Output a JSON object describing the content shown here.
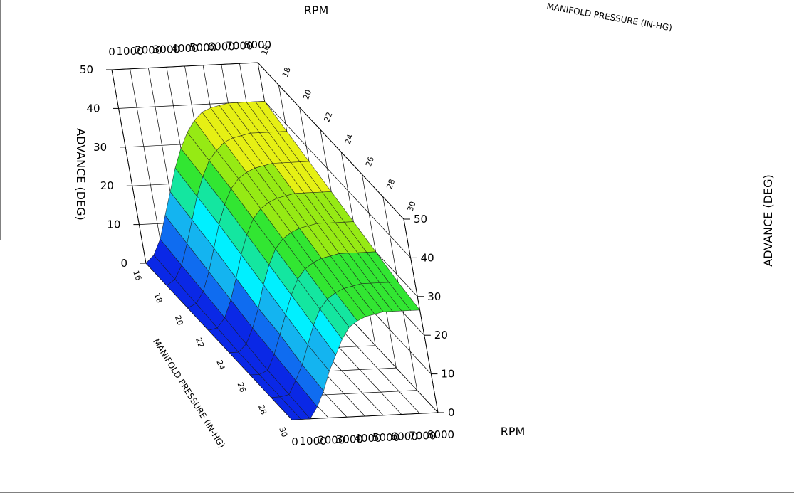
{
  "chart_data": {
    "type": "surface3d",
    "title": "",
    "x_axis": {
      "label": "RPM",
      "range": [
        0,
        8000
      ],
      "ticks": [
        "0",
        "1000",
        "2000",
        "3000",
        "4000",
        "5000",
        "6000",
        "7000",
        "8000"
      ]
    },
    "y_axis": {
      "label": "MANIFOLD PRESSURE (IN-HG)",
      "range": [
        16,
        30
      ],
      "ticks": [
        "16",
        "18",
        "20",
        "22",
        "24",
        "26",
        "28",
        "30"
      ]
    },
    "z_axis": {
      "label": "ADVANCE (DEG)",
      "range": [
        0,
        50
      ],
      "ticks": [
        "0",
        "10",
        "20",
        "30",
        "40",
        "50"
      ]
    },
    "rpm": [
      0,
      500,
      1000,
      1500,
      2000,
      2500,
      3000,
      3500,
      4000,
      4500,
      5000,
      5500,
      6000,
      6500,
      7000,
      7500,
      8000
    ],
    "manifold_pressure": [
      16,
      18,
      20,
      22,
      24,
      26,
      28,
      30
    ],
    "advance": [
      [
        0,
        2,
        6,
        12,
        18,
        24,
        29,
        33,
        36,
        38,
        39,
        39.5,
        40,
        40,
        40,
        40,
        40
      ],
      [
        0,
        1.5,
        5,
        10.5,
        16.5,
        22.5,
        27.5,
        31.5,
        34,
        36,
        37,
        37.5,
        38,
        38,
        38,
        38,
        38
      ],
      [
        0,
        1,
        4,
        9,
        15,
        21,
        26,
        30,
        32.5,
        34,
        35,
        35.5,
        36,
        36,
        36,
        36,
        36
      ],
      [
        0,
        0.5,
        3,
        7.5,
        13,
        19,
        24,
        28,
        30.5,
        32,
        33,
        33.5,
        34,
        34,
        34,
        34,
        34
      ],
      [
        0,
        0,
        2,
        6,
        11,
        17,
        22,
        26,
        28.5,
        30,
        31,
        31.5,
        32,
        32,
        32,
        32,
        32
      ],
      [
        0,
        0,
        1,
        5,
        10,
        15,
        20,
        24,
        26.5,
        28,
        29,
        29.5,
        30,
        30,
        30,
        30,
        30
      ],
      [
        0,
        0,
        0.5,
        4,
        8,
        13,
        18,
        22,
        24.5,
        26,
        27,
        27.5,
        28,
        28,
        28,
        28,
        28
      ],
      [
        0,
        0,
        0,
        3,
        7,
        12,
        16,
        20,
        23,
        24.5,
        25.5,
        26,
        26.5,
        26.5,
        26.5,
        26.5,
        26.5
      ]
    ],
    "colormap": [
      "#0a28e6",
      "#0f6cf0",
      "#14b4f0",
      "#00f0ff",
      "#14e6a0",
      "#32e632",
      "#96ea14",
      "#e6f014",
      "#ffd200",
      "#ffa000"
    ]
  }
}
